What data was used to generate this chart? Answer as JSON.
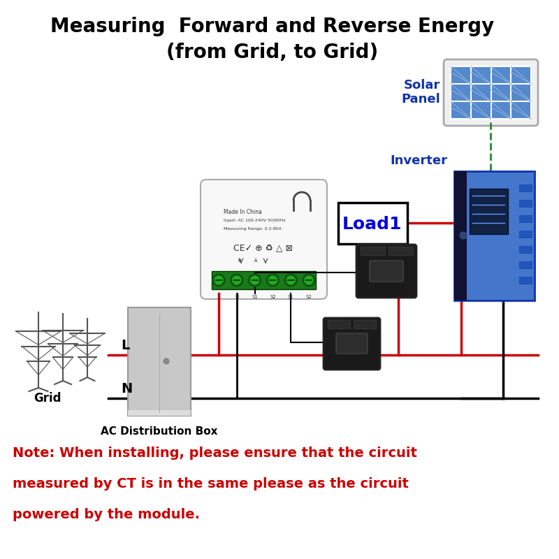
{
  "title_line1": "Measuring  Forward and Reverse Energy",
  "title_line2": "(from Grid, to Grid)",
  "note_line1": "Note: When installing, please ensure that the circuit",
  "note_line2": "measured by CT is in the same please as the circuit",
  "note_line3": "powered by the module.",
  "label_solar": "Solar\nPanel",
  "label_inverter": "Inverter",
  "label_load1": "Load1",
  "label_grid": "Grid",
  "label_ac_box": "AC Distribution Box",
  "label_L": "L",
  "label_N": "N",
  "bg_color": "#ffffff",
  "title_color": "#000000",
  "note_color": "#cc0000",
  "red_wire_color": "#cc0000",
  "black_wire_color": "#000000",
  "green_wire_color": "#228833",
  "solar_blue": "#5588cc",
  "solar_dark": "#2255aa",
  "inverter_blue": "#4477cc",
  "inverter_dark": "#1133aa"
}
